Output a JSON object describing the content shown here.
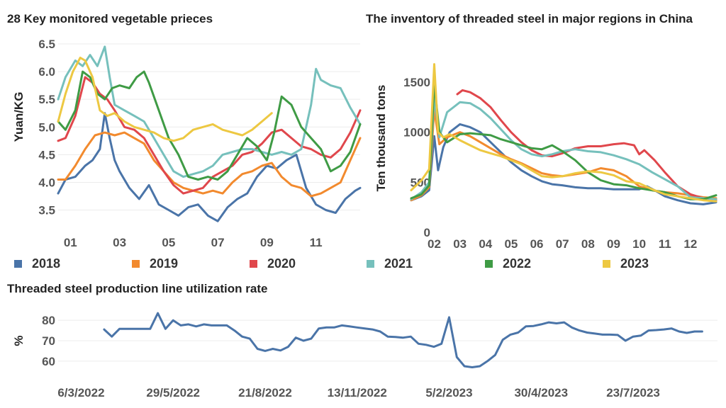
{
  "colors": {
    "2018": "#4a74a8",
    "2019": "#f28a2e",
    "2020": "#e0474c",
    "2021": "#76c0bc",
    "2022": "#3f9b45",
    "2023": "#edc842",
    "util": "#4a74a8"
  },
  "legend": [
    {
      "key": "2018",
      "label": "2018"
    },
    {
      "key": "2019",
      "label": "2019"
    },
    {
      "key": "2020",
      "label": "2020"
    },
    {
      "key": "2021",
      "label": "2021"
    },
    {
      "key": "2022",
      "label": "2022"
    },
    {
      "key": "2023",
      "label": "2023"
    }
  ],
  "chart_data": [
    {
      "type": "line",
      "title": "28 Key monitored vegetable prieces",
      "ylabel": "Yuan/KG",
      "xlabel": "",
      "ylim": [
        3.2,
        6.5
      ],
      "xlim": [
        0.5,
        12.8
      ],
      "yticks": [
        3.5,
        4.0,
        4.5,
        5.0,
        5.5,
        6.0,
        6.5
      ],
      "ytick_labels": [
        "3.5",
        "4.0",
        "4.5",
        "5.0",
        "5.5",
        "6.0",
        "6.5"
      ],
      "xticks": [
        1,
        3,
        5,
        7,
        9,
        11
      ],
      "xtick_labels": [
        "01",
        "03",
        "05",
        "07",
        "09",
        "11"
      ],
      "grid": true,
      "series": [
        {
          "name": "2018",
          "x": [
            0.5,
            0.8,
            1.2,
            1.6,
            1.9,
            2.2,
            2.4,
            2.6,
            2.8,
            3.0,
            3.4,
            3.8,
            4.2,
            4.6,
            5.0,
            5.4,
            5.8,
            6.2,
            6.6,
            7.0,
            7.4,
            7.8,
            8.2,
            8.6,
            9.0,
            9.4,
            9.8,
            10.2,
            10.6,
            11.0,
            11.4,
            11.8,
            12.2,
            12.6,
            12.8
          ],
          "values": [
            3.8,
            4.05,
            4.1,
            4.3,
            4.4,
            4.6,
            5.25,
            4.8,
            4.4,
            4.2,
            3.9,
            3.7,
            3.95,
            3.6,
            3.5,
            3.4,
            3.55,
            3.6,
            3.4,
            3.3,
            3.55,
            3.7,
            3.8,
            4.1,
            4.3,
            4.25,
            4.4,
            4.5,
            3.9,
            3.6,
            3.5,
            3.45,
            3.7,
            3.85,
            3.9
          ]
        },
        {
          "name": "2019",
          "x": [
            0.5,
            0.8,
            1.2,
            1.6,
            2.0,
            2.4,
            2.8,
            3.2,
            3.6,
            4.0,
            4.4,
            4.8,
            5.2,
            5.6,
            6.0,
            6.4,
            6.8,
            7.2,
            7.6,
            8.0,
            8.4,
            8.8,
            9.2,
            9.6,
            10.0,
            10.4,
            10.8,
            11.2,
            11.6,
            12.0,
            12.4,
            12.8
          ],
          "values": [
            4.05,
            4.05,
            4.3,
            4.6,
            4.85,
            4.9,
            4.85,
            4.9,
            4.8,
            4.7,
            4.4,
            4.2,
            4.0,
            3.9,
            3.85,
            3.8,
            3.85,
            3.8,
            4.0,
            4.15,
            4.2,
            4.3,
            4.35,
            4.1,
            3.95,
            3.9,
            3.75,
            3.8,
            3.9,
            4.0,
            4.4,
            4.8
          ]
        },
        {
          "name": "2020",
          "x": [
            0.5,
            0.8,
            1.2,
            1.6,
            1.9,
            2.2,
            2.5,
            2.8,
            3.2,
            3.6,
            4.0,
            4.4,
            4.8,
            5.2,
            5.6,
            6.0,
            6.4,
            6.8,
            7.2,
            7.6,
            8.0,
            8.4,
            8.8,
            9.2,
            9.6,
            10.0,
            10.4,
            10.8,
            11.2,
            11.6,
            12.0,
            12.4,
            12.8
          ],
          "values": [
            4.75,
            4.8,
            5.2,
            5.9,
            5.8,
            5.6,
            5.5,
            5.3,
            5.0,
            4.95,
            4.8,
            4.5,
            4.2,
            3.95,
            3.8,
            3.85,
            3.9,
            4.1,
            4.2,
            4.3,
            4.5,
            4.55,
            4.7,
            4.9,
            4.95,
            4.8,
            4.65,
            4.6,
            4.5,
            4.45,
            4.6,
            4.9,
            5.3
          ]
        },
        {
          "name": "2021",
          "x": [
            0.5,
            0.8,
            1.2,
            1.5,
            1.8,
            2.1,
            2.4,
            2.6,
            2.8,
            3.2,
            3.6,
            4.0,
            4.4,
            4.8,
            5.2,
            5.6,
            6.0,
            6.4,
            6.8,
            7.2,
            7.6,
            8.0,
            8.4,
            8.8,
            9.2,
            9.6,
            10.0,
            10.4,
            10.8,
            11.0,
            11.2,
            11.6,
            12.0,
            12.4,
            12.8
          ],
          "values": [
            5.5,
            5.9,
            6.2,
            6.1,
            6.3,
            6.1,
            6.45,
            5.9,
            5.4,
            5.3,
            5.2,
            5.1,
            4.8,
            4.5,
            4.2,
            4.1,
            4.15,
            4.2,
            4.3,
            4.5,
            4.55,
            4.6,
            4.6,
            4.55,
            4.5,
            4.55,
            4.5,
            4.6,
            5.4,
            6.05,
            5.85,
            5.75,
            5.7,
            5.35,
            5.05
          ]
        },
        {
          "name": "2022",
          "x": [
            0.5,
            0.8,
            1.2,
            1.5,
            1.8,
            2.1,
            2.4,
            2.7,
            3.0,
            3.4,
            3.7,
            4.0,
            4.2,
            4.6,
            5.0,
            5.4,
            5.8,
            6.2,
            6.6,
            7.0,
            7.4,
            7.8,
            8.2,
            8.6,
            9.0,
            9.3,
            9.6,
            10.0,
            10.4,
            10.8,
            11.2,
            11.6,
            12.0,
            12.4,
            12.8
          ],
          "values": [
            5.1,
            4.95,
            5.3,
            6.0,
            5.9,
            5.6,
            5.5,
            5.7,
            5.75,
            5.7,
            5.9,
            6.0,
            5.8,
            5.3,
            4.8,
            4.5,
            4.1,
            4.05,
            4.1,
            4.05,
            4.2,
            4.5,
            4.8,
            4.65,
            4.4,
            4.9,
            5.55,
            5.4,
            5.0,
            4.8,
            4.6,
            4.2,
            4.3,
            4.55,
            5.05
          ]
        },
        {
          "name": "2023",
          "x": [
            0.5,
            0.8,
            1.1,
            1.4,
            1.6,
            1.9,
            2.2,
            2.5,
            2.8,
            3.2,
            3.6,
            4.0,
            4.4,
            4.8,
            5.2,
            5.6,
            6.0,
            6.4,
            6.8,
            7.2,
            7.6,
            8.0,
            8.4,
            8.8,
            9.2
          ],
          "values": [
            5.1,
            5.6,
            6.0,
            6.25,
            6.2,
            5.9,
            5.3,
            5.2,
            5.25,
            5.1,
            5.0,
            4.95,
            4.9,
            4.8,
            4.75,
            4.8,
            4.95,
            5.0,
            5.05,
            4.95,
            4.9,
            4.85,
            4.95,
            5.1,
            5.25
          ]
        }
      ]
    },
    {
      "type": "line",
      "title": "The inventory of threaded steel in major regions in China",
      "ylabel": "Ten thousand tons",
      "xlabel": "",
      "ylim": [
        -50,
        1720
      ],
      "xlim": [
        1.1,
        13.0
      ],
      "yticks": [
        0,
        500,
        1000,
        1500
      ],
      "ytick_labels": [
        "0",
        "500",
        "1000",
        "1500"
      ],
      "xticks": [
        2,
        3,
        4,
        5,
        6,
        7,
        8,
        9,
        10,
        11,
        12
      ],
      "xtick_labels": [
        "02",
        "03",
        "04",
        "05",
        "06",
        "07",
        "08",
        "09",
        "10",
        "11",
        "12"
      ],
      "grid": false,
      "series": [
        {
          "name": "2018",
          "x": [
            1.1,
            1.5,
            1.8,
            2.0,
            2.15,
            2.35,
            2.6,
            3.0,
            3.4,
            3.8,
            4.2,
            4.6,
            5.0,
            5.4,
            5.8,
            6.2,
            6.6,
            7.0,
            7.5,
            8.0,
            8.5,
            9.0,
            9.5,
            10.0,
            10.3,
            10.6,
            11.0,
            11.5,
            12.0,
            12.5,
            13.0
          ],
          "values": [
            320,
            360,
            420,
            960,
            620,
            850,
            1000,
            1080,
            1050,
            1000,
            900,
            800,
            700,
            620,
            560,
            510,
            480,
            470,
            450,
            440,
            440,
            430,
            430,
            430,
            460,
            420,
            360,
            320,
            290,
            280,
            300
          ]
        },
        {
          "name": "2019",
          "x": [
            1.1,
            1.5,
            1.8,
            2.0,
            2.2,
            2.5,
            3.0,
            3.4,
            3.8,
            4.2,
            4.6,
            5.0,
            5.4,
            5.8,
            6.2,
            6.6,
            7.0,
            7.5,
            8.0,
            8.5,
            9.0,
            9.5,
            10.0,
            10.5,
            11.0,
            11.5,
            12.0,
            12.5,
            13.0
          ],
          "values": [
            320,
            370,
            450,
            1230,
            880,
            950,
            1000,
            960,
            900,
            840,
            780,
            730,
            690,
            640,
            590,
            570,
            560,
            580,
            600,
            640,
            620,
            560,
            460,
            420,
            400,
            390,
            370,
            350,
            340
          ]
        },
        {
          "name": "2020",
          "x": [
            2.9,
            3.1,
            3.4,
            3.8,
            4.2,
            4.6,
            5.0,
            5.4,
            5.8,
            6.2,
            6.6,
            7.0,
            7.5,
            8.0,
            8.5,
            9.0,
            9.4,
            9.8,
            10.0,
            10.2,
            10.6,
            11.0,
            11.5,
            12.0,
            12.5,
            13.0
          ],
          "values": [
            1380,
            1420,
            1400,
            1340,
            1250,
            1120,
            1000,
            900,
            820,
            770,
            760,
            790,
            840,
            860,
            860,
            880,
            890,
            870,
            780,
            820,
            720,
            600,
            460,
            380,
            340,
            320
          ]
        },
        {
          "name": "2021",
          "x": [
            1.1,
            1.5,
            1.8,
            2.0,
            2.2,
            2.5,
            3.0,
            3.4,
            3.8,
            4.2,
            4.6,
            5.0,
            5.4,
            5.8,
            6.2,
            6.6,
            7.0,
            7.5,
            8.0,
            8.5,
            9.0,
            9.5,
            10.0,
            10.5,
            11.0,
            11.5,
            12.0,
            12.5,
            13.0
          ],
          "values": [
            330,
            400,
            500,
            1350,
            950,
            1200,
            1300,
            1290,
            1230,
            1140,
            1030,
            920,
            830,
            780,
            760,
            780,
            810,
            830,
            810,
            800,
            770,
            730,
            680,
            600,
            530,
            460,
            350,
            340,
            330
          ]
        },
        {
          "name": "2022",
          "x": [
            1.1,
            1.5,
            1.8,
            2.0,
            2.2,
            2.5,
            3.0,
            3.4,
            3.8,
            4.2,
            4.6,
            5.0,
            5.4,
            5.8,
            6.2,
            6.6,
            7.0,
            7.5,
            8.0,
            8.5,
            9.0,
            9.5,
            10.0,
            10.5,
            11.0,
            11.5,
            12.0,
            12.5,
            13.0
          ],
          "values": [
            340,
            380,
            470,
            1490,
            1000,
            900,
            980,
            990,
            980,
            970,
            930,
            900,
            870,
            840,
            830,
            870,
            810,
            720,
            600,
            520,
            480,
            470,
            440,
            420,
            400,
            360,
            330,
            330,
            370
          ]
        },
        {
          "name": "2023",
          "x": [
            1.1,
            1.5,
            1.8,
            2.0,
            2.15,
            2.35,
            2.6,
            3.0,
            3.4,
            3.8,
            4.2,
            4.6,
            5.0,
            5.4,
            5.8,
            6.2,
            6.6,
            7.0,
            7.5,
            8.0,
            8.5,
            9.0,
            9.5,
            10.0,
            10.5,
            11.0,
            11.5,
            12.0,
            12.5,
            13.0
          ],
          "values": [
            420,
            520,
            630,
            1680,
            1000,
            950,
            980,
            920,
            870,
            820,
            790,
            760,
            720,
            680,
            620,
            560,
            550,
            560,
            590,
            610,
            600,
            570,
            510,
            490,
            430,
            380,
            360,
            340,
            320,
            310
          ]
        }
      ]
    },
    {
      "type": "line",
      "title": "Threaded steel production line utilization rate",
      "ylabel": "%",
      "xlabel": "",
      "ylim": [
        53,
        87
      ],
      "xlim": [
        -3,
        83
      ],
      "yticks": [
        60,
        70,
        80
      ],
      "ytick_labels": [
        "60",
        "70",
        "80"
      ],
      "xticks": [
        0,
        12,
        24,
        36,
        48,
        60,
        72
      ],
      "xtick_labels": [
        "6/3/2022",
        "29/5/2022",
        "21/8/2022",
        "13/11/2022",
        "5/2/2023",
        "30/4/2023",
        "23/7/2023"
      ],
      "grid": true,
      "series": [
        {
          "name": "",
          "x": [
            3,
            4,
            5,
            6,
            7,
            8,
            9,
            10,
            11,
            12,
            13,
            14,
            15,
            16,
            17,
            18,
            19,
            20,
            21,
            22,
            23,
            24,
            25,
            26,
            27,
            28,
            29,
            30,
            31,
            32,
            33,
            34,
            35,
            36,
            37,
            38,
            39,
            40,
            41,
            42,
            43,
            44,
            45,
            46,
            47,
            48,
            49,
            50,
            51,
            52,
            53,
            54,
            55,
            56,
            57,
            58,
            59,
            60,
            61,
            62,
            63,
            64,
            65,
            66,
            67,
            68,
            69,
            70,
            71,
            72,
            73,
            74,
            75,
            76,
            77,
            78,
            79,
            80,
            81
          ],
          "values": [
            75.5,
            72,
            75.8,
            75.8,
            75.8,
            75.8,
            75.8,
            83.5,
            75.8,
            80,
            77.5,
            78,
            77,
            78,
            77.5,
            77.5,
            77.5,
            75,
            72,
            71,
            66,
            65,
            66,
            65.2,
            67,
            71.5,
            70,
            71,
            76,
            76.5,
            76.5,
            77.5,
            77,
            76.5,
            76,
            75.5,
            74.5,
            72,
            71.8,
            71.5,
            72,
            68.5,
            68,
            67,
            68.5,
            81.5,
            62,
            57.5,
            57,
            57.5,
            60,
            63,
            70.5,
            73,
            74,
            77,
            77.2,
            78,
            79,
            78.5,
            79,
            76.5,
            75,
            74,
            73.5,
            73,
            73,
            72.8,
            70,
            72,
            72.5,
            75,
            75.2,
            75.5,
            76,
            74.5,
            73.8,
            74.5,
            74.5
          ]
        }
      ]
    }
  ]
}
